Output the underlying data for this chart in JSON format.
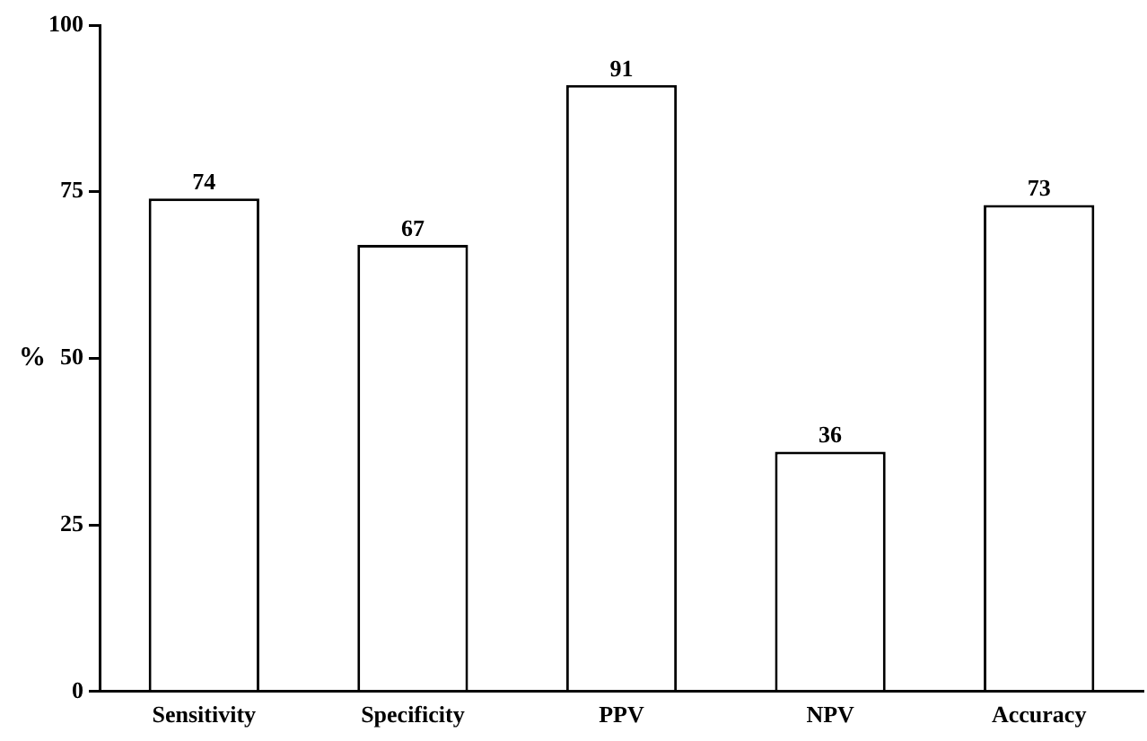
{
  "chart_data": {
    "type": "bar",
    "ylabel": "%",
    "categories": [
      "Sensitivity",
      "Specificity",
      "PPV",
      "NPV",
      "Accuracy"
    ],
    "values": [
      74,
      67,
      91,
      36,
      73
    ],
    "color": "#ffffff",
    "ylim": [
      0,
      100
    ],
    "yticks": [
      0,
      25,
      50,
      75,
      100
    ],
    "grid": false,
    "legend": false,
    "data_labels": true
  }
}
